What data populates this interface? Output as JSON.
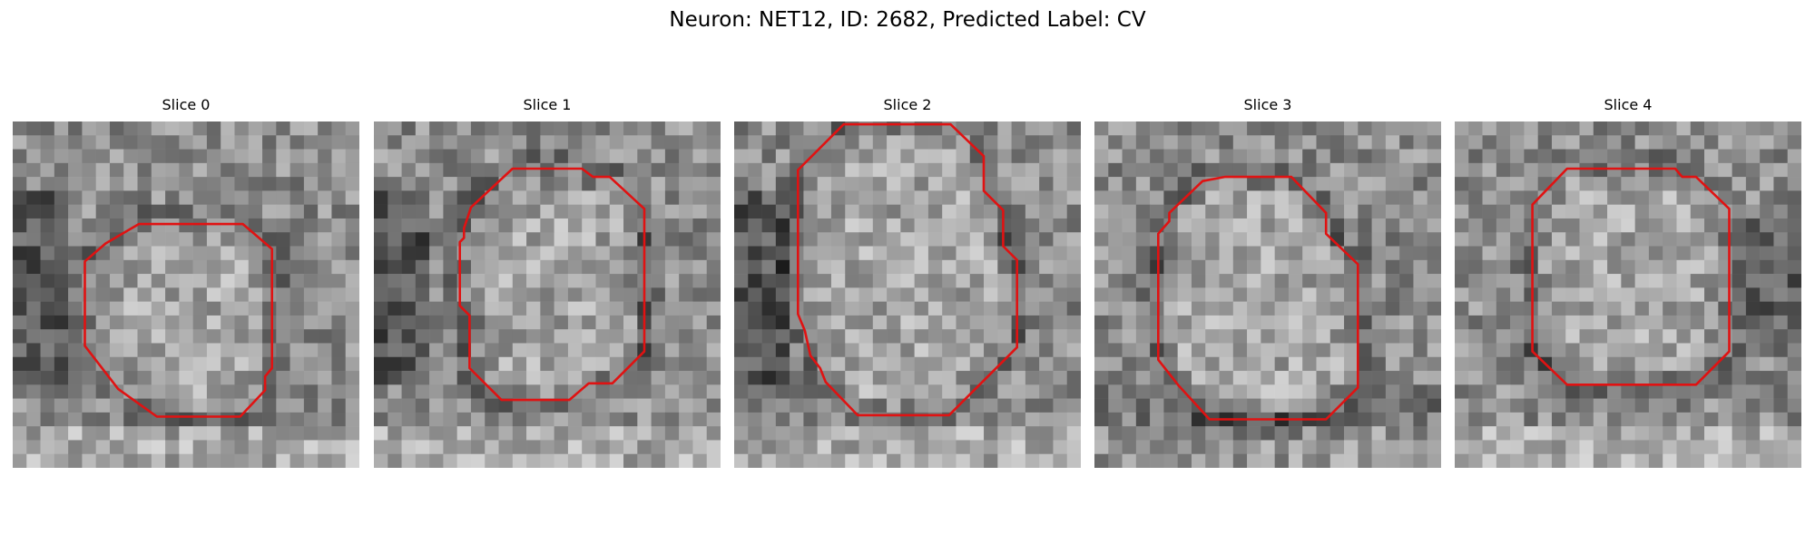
{
  "figure": {
    "title": "Neuron: NET12, ID: 2682, Predicted Label: CV"
  },
  "colors": {
    "contour": "#e01212",
    "background": "#ffffff"
  },
  "slices": [
    {
      "title": "Slice 0",
      "dark_side": "left",
      "contour_vertices": [
        [
          12.0,
          7.4
        ],
        [
          16.6,
          7.4
        ],
        [
          18.7,
          9.2
        ],
        [
          18.7,
          17.8
        ],
        [
          18.2,
          18.4
        ],
        [
          18.2,
          19.4
        ],
        [
          16.4,
          21.3
        ],
        [
          10.4,
          21.3
        ],
        [
          7.6,
          19.3
        ],
        [
          5.2,
          16.2
        ],
        [
          5.2,
          10.1
        ],
        [
          6.7,
          8.8
        ],
        [
          9.1,
          7.4
        ]
      ]
    },
    {
      "title": "Slice 1",
      "dark_side": "left",
      "contour_vertices": [
        [
          10.0,
          3.4
        ],
        [
          15.0,
          3.4
        ],
        [
          15.8,
          4.0
        ],
        [
          17.0,
          4.0
        ],
        [
          19.5,
          6.3
        ],
        [
          19.5,
          16.6
        ],
        [
          17.2,
          18.9
        ],
        [
          15.5,
          18.9
        ],
        [
          14.1,
          20.1
        ],
        [
          9.2,
          20.1
        ],
        [
          6.9,
          17.8
        ],
        [
          6.9,
          14.0
        ],
        [
          6.2,
          13.3
        ],
        [
          6.2,
          8.7
        ],
        [
          6.5,
          8.4
        ],
        [
          6.5,
          7.7
        ],
        [
          7.0,
          6.2
        ]
      ]
    },
    {
      "title": "Slice 2",
      "dark_side": "left",
      "contour_vertices": [
        [
          7.9,
          0.2
        ],
        [
          15.6,
          0.2
        ],
        [
          18.0,
          2.5
        ],
        [
          18.0,
          5.0
        ],
        [
          19.4,
          6.4
        ],
        [
          19.4,
          9.0
        ],
        [
          20.4,
          10.0
        ],
        [
          20.4,
          16.3
        ],
        [
          15.5,
          21.2
        ],
        [
          8.9,
          21.2
        ],
        [
          6.6,
          18.8
        ],
        [
          6.2,
          17.8
        ],
        [
          5.5,
          16.9
        ],
        [
          5.1,
          15.1
        ],
        [
          4.6,
          13.9
        ],
        [
          4.6,
          3.5
        ]
      ]
    },
    {
      "title": "Slice 3",
      "dark_side": "bottom",
      "contour_vertices": [
        [
          9.4,
          4.0
        ],
        [
          14.2,
          4.0
        ],
        [
          16.7,
          6.6
        ],
        [
          16.7,
          8.1
        ],
        [
          19.0,
          10.3
        ],
        [
          19.0,
          19.2
        ],
        [
          16.7,
          21.5
        ],
        [
          8.3,
          21.5
        ],
        [
          6.1,
          19.1
        ],
        [
          4.6,
          17.2
        ],
        [
          4.6,
          8.1
        ],
        [
          5.4,
          7.2
        ],
        [
          5.4,
          6.6
        ],
        [
          7.8,
          4.3
        ]
      ]
    },
    {
      "title": "Slice 4",
      "dark_side": "right",
      "contour_vertices": [
        [
          10.1,
          3.4
        ],
        [
          15.9,
          3.4
        ],
        [
          16.4,
          4.0
        ],
        [
          17.4,
          4.0
        ],
        [
          19.8,
          6.3
        ],
        [
          19.8,
          16.6
        ],
        [
          17.4,
          19.0
        ],
        [
          8.1,
          19.0
        ],
        [
          5.6,
          16.6
        ],
        [
          5.6,
          6.0
        ],
        [
          8.1,
          3.4
        ]
      ]
    }
  ]
}
